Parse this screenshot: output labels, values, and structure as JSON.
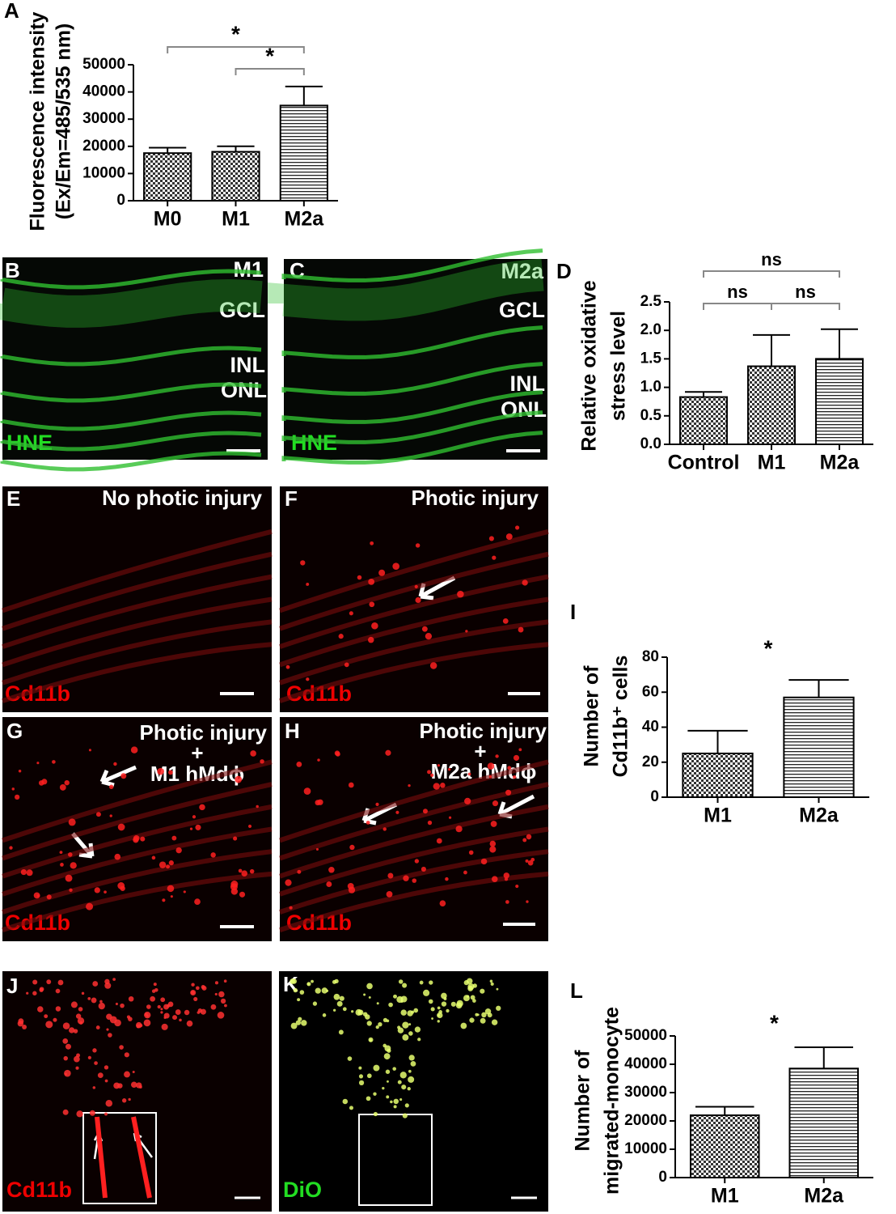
{
  "chart_data": [
    {
      "type": "bar",
      "panel": "A",
      "ylabel": [
        "Fluorescence intensity",
        "(Ex/Em=485/535 nm)"
      ],
      "categories": [
        "M0",
        "M1",
        "M2a"
      ],
      "values": [
        17500,
        18000,
        35000
      ],
      "errors": [
        2000,
        2000,
        7000
      ],
      "patterns": [
        "checker",
        "checker",
        "hlines"
      ],
      "ylim": [
        0,
        50000
      ],
      "yticks": [
        0,
        10000,
        20000,
        30000,
        40000,
        50000
      ],
      "significance": [
        {
          "label": "*",
          "between": [
            "M0",
            "M2a"
          ]
        },
        {
          "label": "*",
          "between": [
            "M1",
            "M2a"
          ]
        }
      ]
    },
    {
      "type": "bar",
      "panel": "D",
      "ylabel": [
        "Relative oxidative",
        "stress level"
      ],
      "categories": [
        "Control",
        "M1",
        "M2a"
      ],
      "values": [
        0.83,
        1.37,
        1.5
      ],
      "errors": [
        0.09,
        0.55,
        0.52
      ],
      "patterns": [
        "checker",
        "checker",
        "hlines"
      ],
      "ylim": [
        0,
        2.5
      ],
      "yticks": [
        {
          "value": 0,
          "label": "0.0"
        },
        0.5,
        {
          "value": 1,
          "label": "1.0"
        },
        1.5,
        {
          "value": 2,
          "label": "2.0"
        },
        2.5
      ],
      "significance": [
        {
          "label": "ns",
          "between": [
            "Control",
            "M1"
          ]
        },
        {
          "label": "ns",
          "between": [
            "M1",
            "M2a"
          ]
        },
        {
          "label": "ns",
          "between": [
            "Control",
            "M2a"
          ]
        }
      ]
    },
    {
      "type": "bar",
      "panel": "I",
      "ylabel": [
        "Number of",
        "Cd11b⁺ cells"
      ],
      "categories": [
        "M1",
        "M2a"
      ],
      "values": [
        25,
        57
      ],
      "errors": [
        13,
        10
      ],
      "patterns": [
        "checker",
        "hlines"
      ],
      "ylim": [
        0,
        80
      ],
      "yticks": [
        0,
        20,
        40,
        60,
        80
      ],
      "significance": [
        {
          "label": "*"
        }
      ]
    },
    {
      "type": "bar",
      "panel": "L",
      "ylabel": [
        "Number of",
        "migrated-monocyte"
      ],
      "categories": [
        "M1",
        "M2a"
      ],
      "values": [
        22000,
        38500
      ],
      "errors": [
        3000,
        7500
      ],
      "patterns": [
        "checker",
        "hlines"
      ],
      "ylim": [
        0,
        50000
      ],
      "yticks": [
        0,
        10000,
        20000,
        30000,
        40000,
        50000
      ],
      "significance": [
        {
          "label": "*"
        }
      ]
    }
  ],
  "image_panels": [
    {
      "letter": "B",
      "labels": [
        "M1",
        "GCL",
        "INL",
        "ONL"
      ],
      "stain": "HNE"
    },
    {
      "letter": "C",
      "labels": [
        "M2a",
        "GCL",
        "INL",
        "ONL"
      ],
      "stain": "HNE"
    },
    {
      "letter": "E",
      "labels": [
        "No photic injury"
      ],
      "stain": "Cd11b"
    },
    {
      "letter": "F",
      "labels": [
        "Photic injury"
      ],
      "stain": "Cd11b"
    },
    {
      "letter": "G",
      "labels": [
        "Photic injury",
        "+",
        "M1 hMdϕ"
      ],
      "stain": "Cd11b"
    },
    {
      "letter": "H",
      "labels": [
        "Photic injury",
        "+",
        "M2a hMdϕ"
      ],
      "stain": "Cd11b"
    },
    {
      "letter": "J",
      "labels": [],
      "stain": "Cd11b"
    },
    {
      "letter": "K",
      "labels": [],
      "stain": "DiO"
    }
  ]
}
